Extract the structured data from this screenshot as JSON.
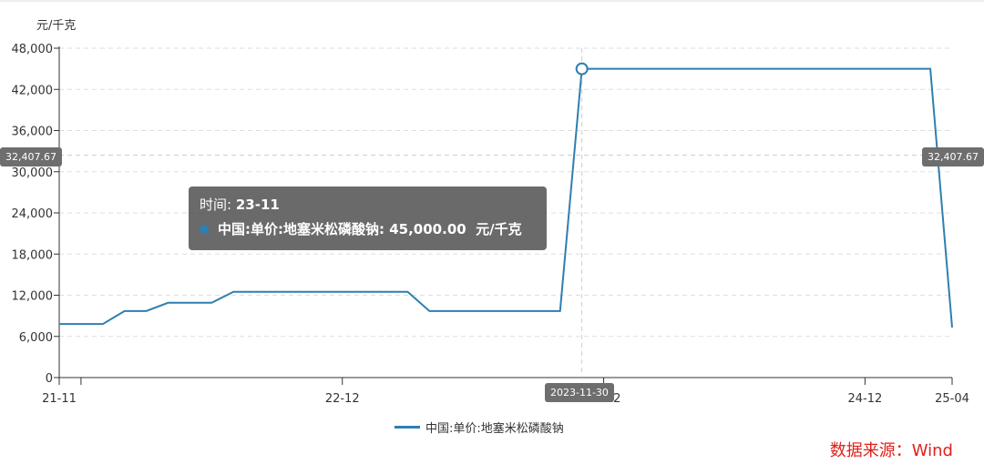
{
  "chart_data": {
    "type": "line",
    "ylabel": "元/千克",
    "ylim": [
      0,
      48000
    ],
    "yticks": [
      "0",
      "6,000",
      "12,000",
      "18,000",
      "24,000",
      "30,000",
      "36,000",
      "42,000",
      "48,000"
    ],
    "ytick_values": [
      0,
      6000,
      12000,
      18000,
      24000,
      30000,
      36000,
      42000,
      48000
    ],
    "xticks": [
      "21-11",
      "22-12",
      "23-12",
      "24-12",
      "25-04"
    ],
    "grid": true,
    "legend_position": "bottom",
    "x": [
      "21-11",
      "21-12",
      "22-01",
      "22-02",
      "22-03",
      "22-04",
      "22-05",
      "22-06",
      "22-07",
      "22-08",
      "22-09",
      "22-10",
      "22-11",
      "22-12",
      "23-01",
      "23-02",
      "23-03",
      "23-04",
      "23-05",
      "23-06",
      "23-07",
      "23-08",
      "23-09",
      "23-10",
      "23-11",
      "23-12",
      "24-01",
      "24-02",
      "24-03",
      "24-04",
      "24-05",
      "24-06",
      "24-07",
      "24-08",
      "24-09",
      "24-10",
      "24-11",
      "24-12",
      "25-01",
      "25-02",
      "25-03",
      "25-04"
    ],
    "series": [
      {
        "name": "中国:单价:地塞米松磷酸钠",
        "color": "#2f7fb0",
        "values": [
          7800,
          7800,
          7800,
          9700,
          9700,
          10900,
          10900,
          10900,
          12500,
          12500,
          12500,
          12500,
          12500,
          12500,
          12500,
          12500,
          12500,
          9700,
          9700,
          9700,
          9700,
          9700,
          9700,
          9700,
          45000,
          45000,
          45000,
          45000,
          45000,
          45000,
          45000,
          45000,
          45000,
          45000,
          45000,
          45000,
          45000,
          45000,
          45000,
          45000,
          45000,
          7300
        ]
      }
    ]
  },
  "tooltip": {
    "time_label": "时间:",
    "time_value": "23-11",
    "series_label": "中国:单价:地塞米松磷酸钠:",
    "value": "45,000.00",
    "unit": "元/千克"
  },
  "axis_pointer": {
    "y_value": "32,407.67",
    "x_value": "2023-11-30"
  },
  "source": "数据来源：Wind"
}
